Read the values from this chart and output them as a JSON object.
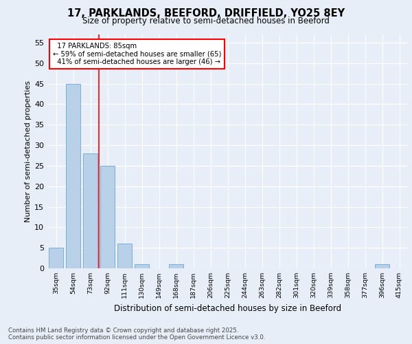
{
  "title1": "17, PARKLANDS, BEEFORD, DRIFFIELD, YO25 8EY",
  "title2": "Size of property relative to semi-detached houses in Beeford",
  "xlabel": "Distribution of semi-detached houses by size in Beeford",
  "ylabel": "Number of semi-detached properties",
  "categories": [
    "35sqm",
    "54sqm",
    "73sqm",
    "92sqm",
    "111sqm",
    "130sqm",
    "149sqm",
    "168sqm",
    "187sqm",
    "206sqm",
    "225sqm",
    "244sqm",
    "263sqm",
    "282sqm",
    "301sqm",
    "320sqm",
    "339sqm",
    "358sqm",
    "377sqm",
    "396sqm",
    "415sqm"
  ],
  "values": [
    5,
    45,
    28,
    25,
    6,
    1,
    0,
    1,
    0,
    0,
    0,
    0,
    0,
    0,
    0,
    0,
    0,
    0,
    0,
    1,
    0
  ],
  "bar_color": "#b8d0e8",
  "bar_edge_color": "#7aafd4",
  "red_line_x": 2.5,
  "pct_smaller": 59,
  "n_smaller": 65,
  "pct_larger": 41,
  "n_larger": 46,
  "annotation_title": "17 PARKLANDS: 85sqm",
  "ylim": [
    0,
    57
  ],
  "yticks": [
    0,
    5,
    10,
    15,
    20,
    25,
    30,
    35,
    40,
    45,
    50,
    55
  ],
  "bg_color": "#e8eef8",
  "plot_bg_color": "#e8eef8",
  "footer1": "Contains HM Land Registry data © Crown copyright and database right 2025.",
  "footer2": "Contains public sector information licensed under the Open Government Licence v3.0."
}
